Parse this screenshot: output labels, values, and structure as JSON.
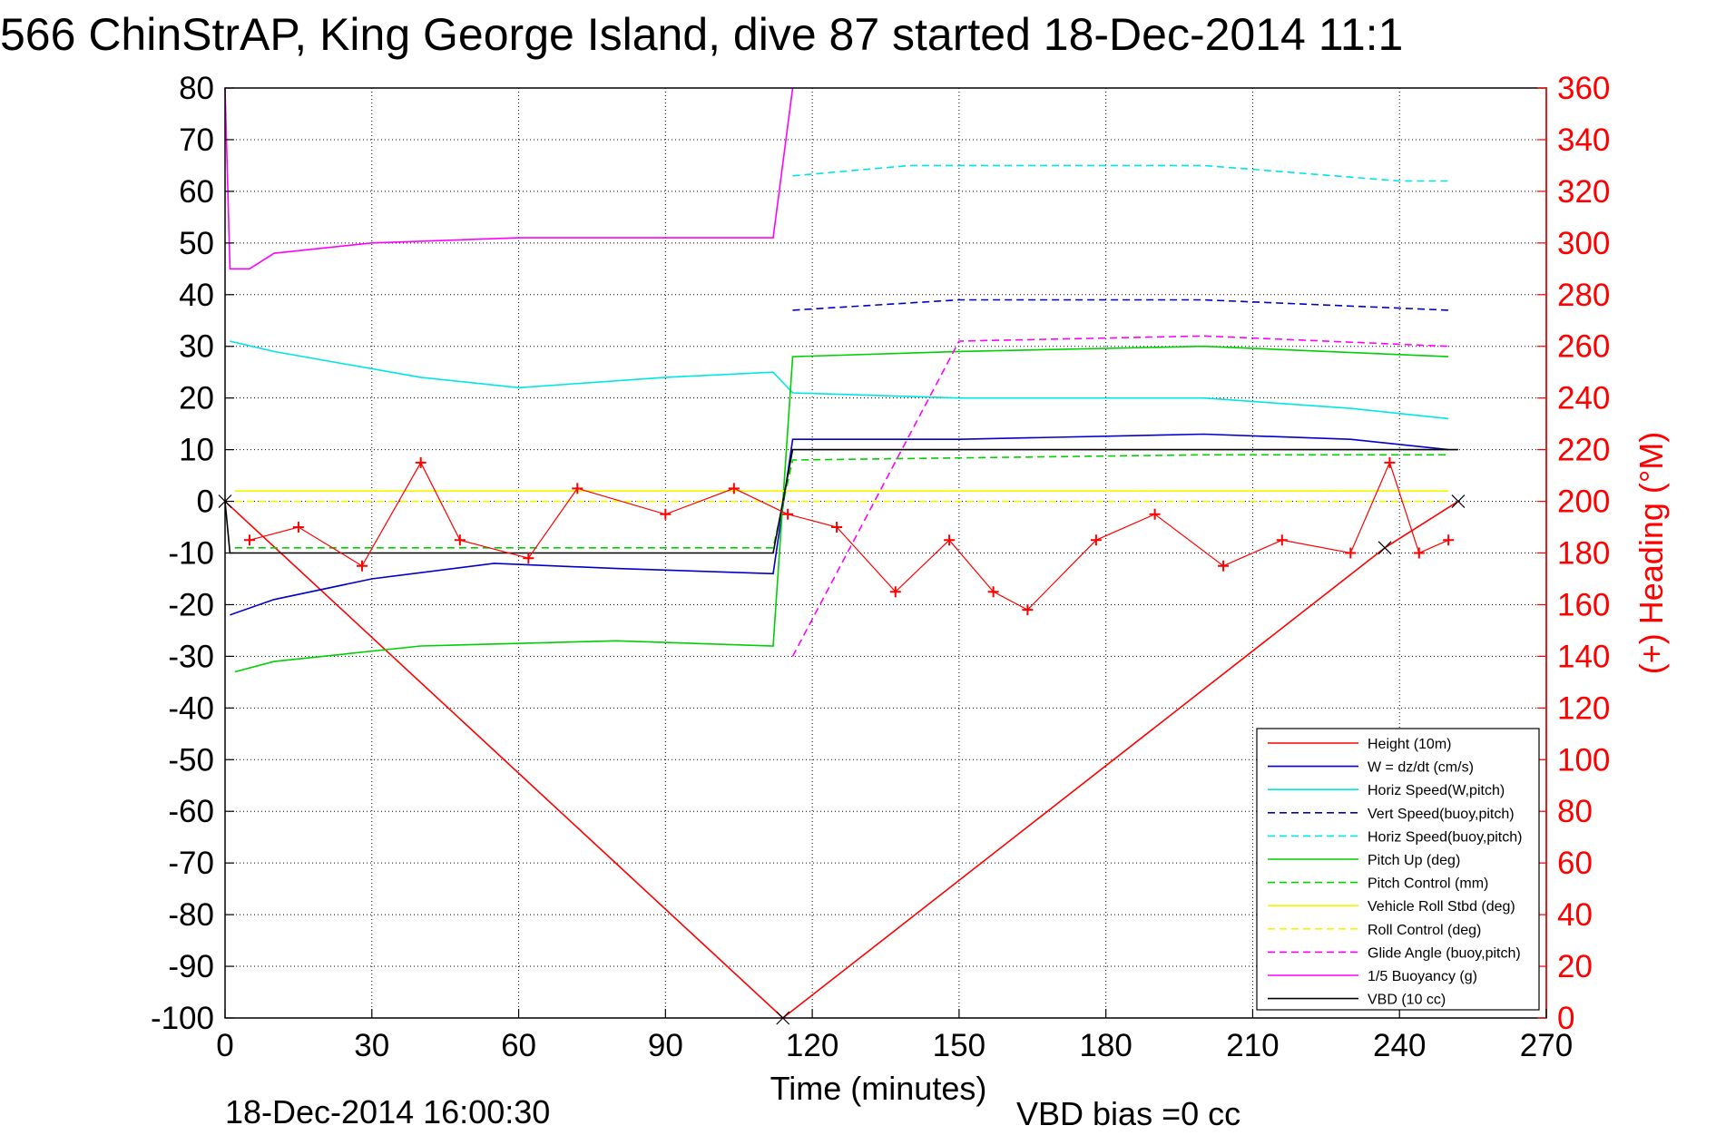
{
  "chart_data": {
    "type": "line",
    "title": "566 ChinStrAP, King George Island, dive 87 started 18-Dec-2014 11:1",
    "xlabel": "Time (minutes)",
    "ylabel_right": "(+) Heading (°M)",
    "xlim": [
      0,
      270
    ],
    "ylim": [
      -100,
      80
    ],
    "ylim_right": [
      0,
      360
    ],
    "x_ticks": [
      0,
      30,
      60,
      90,
      120,
      150,
      180,
      210,
      240,
      270
    ],
    "y_ticks": [
      80,
      70,
      60,
      50,
      40,
      30,
      20,
      10,
      0,
      -10,
      -20,
      -30,
      -40,
      -50,
      -60,
      -70,
      -80,
      -90,
      -100
    ],
    "y_right_ticks": [
      360,
      340,
      320,
      300,
      280,
      260,
      240,
      220,
      200,
      180,
      160,
      140,
      120,
      100,
      80,
      60,
      40,
      20,
      0
    ],
    "grid": true,
    "legend_position": "bottom-right",
    "series": [
      {
        "name": "Height (10m)",
        "color": "#ff0000",
        "style": "solid",
        "x": [
          0,
          114,
          237,
          252
        ],
        "y": [
          0,
          -100,
          -9,
          0
        ]
      },
      {
        "name": "W = dz/dt (cm/s)",
        "color": "#0000c8",
        "style": "solid",
        "x": [
          1,
          10,
          30,
          55,
          80,
          112,
          116,
          150,
          200,
          230,
          250
        ],
        "y": [
          -22,
          -19,
          -15,
          -12,
          -13,
          -14,
          12,
          12,
          13,
          12,
          10
        ]
      },
      {
        "name": "Horiz Speed(W,pitch)",
        "color": "#00e5e5",
        "style": "solid",
        "x": [
          1,
          10,
          40,
          60,
          90,
          112,
          116,
          150,
          200,
          230,
          250
        ],
        "y": [
          31,
          29,
          24,
          22,
          24,
          25,
          21,
          20,
          20,
          18,
          16
        ]
      },
      {
        "name": "Vert Speed(buoy,pitch)",
        "color": "#0000c8",
        "style": "dashed",
        "x": [
          116,
          150,
          200,
          250
        ],
        "y": [
          37,
          39,
          39,
          37
        ]
      },
      {
        "name": "Horiz Speed(buoy,pitch)",
        "color": "#00e5e5",
        "style": "dashed",
        "x": [
          116,
          140,
          200,
          240,
          250
        ],
        "y": [
          63,
          65,
          65,
          62,
          62
        ]
      },
      {
        "name": "Pitch Up (deg)",
        "color": "#00d000",
        "style": "solid",
        "x": [
          2,
          10,
          40,
          80,
          112,
          116,
          150,
          200,
          250
        ],
        "y": [
          -33,
          -31,
          -28,
          -27,
          -28,
          28,
          29,
          30,
          28
        ]
      },
      {
        "name": "Pitch Control (mm)",
        "color": "#00d000",
        "style": "dashed",
        "x": [
          2,
          112,
          116,
          200,
          250
        ],
        "y": [
          -9,
          -9,
          8,
          9,
          9
        ]
      },
      {
        "name": "Vehicle Roll Stbd (deg)",
        "color": "#f5f500",
        "style": "solid",
        "x": [
          2,
          112,
          116,
          250
        ],
        "y": [
          2,
          2,
          2,
          2
        ]
      },
      {
        "name": "Roll Control (deg)",
        "color": "#f5f500",
        "style": "dashed",
        "x": [
          2,
          112,
          116,
          250
        ],
        "y": [
          0,
          0,
          0,
          0
        ]
      },
      {
        "name": "Glide Angle (buoy,pitch)",
        "color": "#ff00ff",
        "style": "dashed",
        "x": [
          116,
          150,
          200,
          250
        ],
        "y": [
          -30,
          31,
          32,
          30
        ]
      },
      {
        "name": "1/5 Buoyancy (g)",
        "color": "#ff00ff",
        "style": "solid",
        "x": [
          0,
          1,
          5,
          10,
          30,
          60,
          112,
          116
        ],
        "y": [
          80,
          45,
          45,
          48,
          50,
          51,
          51,
          80
        ]
      },
      {
        "name": "VBD (10 cc)",
        "color": "#000000",
        "style": "solid",
        "x": [
          0,
          1,
          112,
          116,
          252
        ],
        "y": [
          0,
          -10,
          -10,
          10,
          10
        ]
      }
    ],
    "heading_series": {
      "name": "(+) Heading",
      "color": "#ff0000",
      "marker": "+",
      "x": [
        5,
        15,
        28,
        40,
        48,
        62,
        72,
        90,
        104,
        115,
        125,
        137,
        148,
        157,
        164,
        178,
        190,
        204,
        216,
        230,
        238,
        244,
        250
      ],
      "y": [
        185,
        190,
        175,
        215,
        185,
        178,
        205,
        195,
        205,
        195,
        190,
        165,
        185,
        165,
        158,
        185,
        195,
        175,
        185,
        180,
        215,
        180,
        185
      ]
    }
  },
  "footer": {
    "timestamp": "18-Dec-2014 16:00:30",
    "vbd_bias": "VBD bias =0 cc"
  }
}
